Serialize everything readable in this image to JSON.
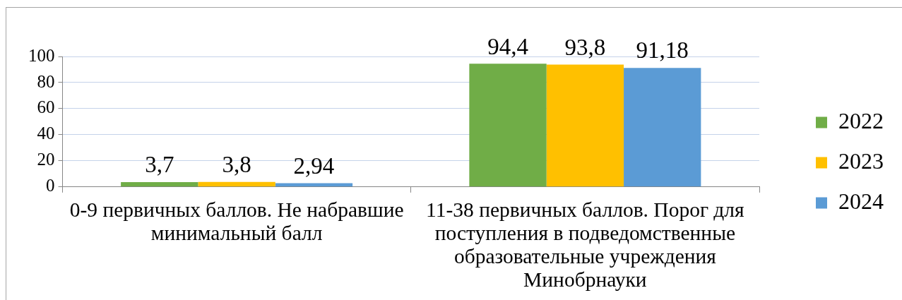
{
  "chart_data": {
    "type": "bar",
    "categories": [
      "0-9 первичных баллов. Не набравшие минимальный балл",
      "11-38 первичных баллов. Порог для поступления в подведомственные образовательные учреждения Минобрнауки"
    ],
    "series": [
      {
        "name": "2022",
        "color": "#70ad47",
        "values": [
          3.7,
          94.4
        ],
        "value_labels": [
          "3,7",
          "94,4"
        ]
      },
      {
        "name": "2023",
        "color": "#ffc000",
        "values": [
          3.8,
          93.8
        ],
        "value_labels": [
          "3,8",
          "93,8"
        ]
      },
      {
        "name": "2024",
        "color": "#5b9bd5",
        "values": [
          2.94,
          91.18
        ],
        "value_labels": [
          "2,94",
          "91,18"
        ]
      }
    ],
    "ylim": [
      0,
      100
    ],
    "yticks": [
      0,
      20,
      40,
      60,
      80,
      100
    ],
    "grid": "y",
    "legend": "right"
  }
}
